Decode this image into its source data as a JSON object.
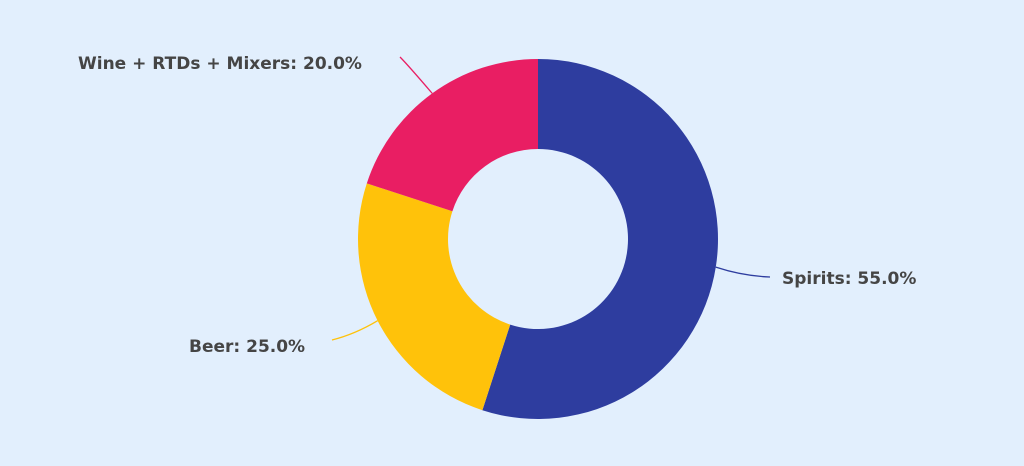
{
  "chart_data": {
    "type": "pie",
    "donut": true,
    "title": "",
    "slices": [
      {
        "label": "Spirits",
        "value": 55.0,
        "display": "Spirits: 55.0%",
        "color": "#2e3d9f"
      },
      {
        "label": "Beer",
        "value": 25.0,
        "display": "Beer: 25.0%",
        "color": "#ffc20a"
      },
      {
        "label": "Wine + RTDs + Mixers",
        "value": 20.0,
        "display": "Wine + RTDs + Mixers: 20.0%",
        "color": "#e91e63"
      }
    ],
    "background": "#e2effd",
    "label_color": "#454545"
  }
}
